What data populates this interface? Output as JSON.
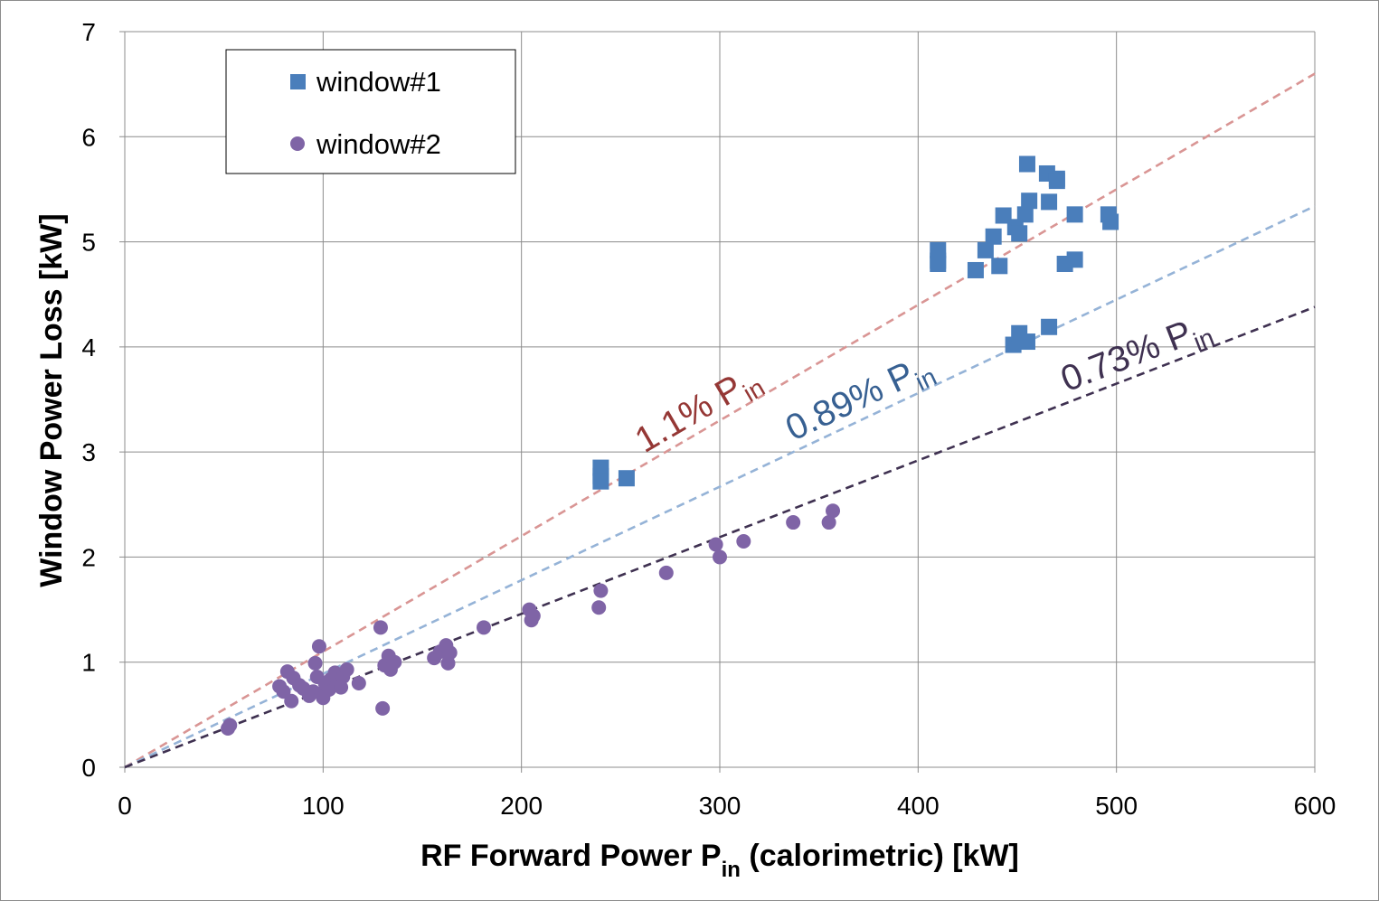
{
  "chart_data": {
    "type": "scatter",
    "xlabel": {
      "main": "RF Forward Power P",
      "sub": "in",
      "rest": " (calorimetric) [kW]"
    },
    "ylabel": "Window Power Loss [kW]",
    "xlim": [
      0,
      600
    ],
    "ylim": [
      0,
      7
    ],
    "x_ticks": [
      "0",
      "100",
      "200",
      "300",
      "400",
      "500",
      "600"
    ],
    "y_ticks": [
      "0",
      "1",
      "2",
      "3",
      "4",
      "5",
      "6",
      "7"
    ],
    "grid": true,
    "legend_position": "top-left",
    "series": [
      {
        "name": "window#1",
        "marker": "square",
        "color": "#4a7ebb",
        "points": [
          [
            240,
            2.85
          ],
          [
            240,
            2.77
          ],
          [
            240,
            2.72
          ],
          [
            253,
            2.75
          ],
          [
            410,
            4.92
          ],
          [
            410,
            4.82
          ],
          [
            410,
            4.79
          ],
          [
            429,
            4.73
          ],
          [
            434,
            4.92
          ],
          [
            438,
            5.05
          ],
          [
            441,
            4.77
          ],
          [
            443,
            5.25
          ],
          [
            448,
            4.02
          ],
          [
            449,
            5.14
          ],
          [
            451,
            5.08
          ],
          [
            451,
            4.13
          ],
          [
            455,
            4.05
          ],
          [
            454,
            5.26
          ],
          [
            455,
            5.74
          ],
          [
            456,
            5.39
          ],
          [
            465,
            5.65
          ],
          [
            466,
            5.38
          ],
          [
            466,
            4.19
          ],
          [
            470,
            5.6
          ],
          [
            470,
            5.58
          ],
          [
            474,
            4.79
          ],
          [
            479,
            5.26
          ],
          [
            479,
            4.83
          ],
          [
            496,
            5.26
          ],
          [
            497,
            5.19
          ]
        ]
      },
      {
        "name": "window#2",
        "marker": "circle",
        "color": "#7f64a6",
        "points": [
          [
            52,
            0.37
          ],
          [
            53,
            0.4
          ],
          [
            78,
            0.77
          ],
          [
            80,
            0.72
          ],
          [
            82,
            0.91
          ],
          [
            84,
            0.63
          ],
          [
            85,
            0.85
          ],
          [
            88,
            0.78
          ],
          [
            90,
            0.75
          ],
          [
            93,
            0.68
          ],
          [
            95,
            0.72
          ],
          [
            96,
            0.99
          ],
          [
            97,
            0.86
          ],
          [
            98,
            1.15
          ],
          [
            99,
            0.7
          ],
          [
            100,
            0.66
          ],
          [
            101,
            0.8
          ],
          [
            103,
            0.74
          ],
          [
            104,
            0.84
          ],
          [
            106,
            0.9
          ],
          [
            107,
            0.79
          ],
          [
            109,
            0.76
          ],
          [
            110,
            0.86
          ],
          [
            112,
            0.93
          ],
          [
            118,
            0.8
          ],
          [
            129,
            1.33
          ],
          [
            130,
            0.56
          ],
          [
            131,
            0.97
          ],
          [
            133,
            1.06
          ],
          [
            134,
            0.93
          ],
          [
            136,
            1.0
          ],
          [
            156,
            1.04
          ],
          [
            159,
            1.1
          ],
          [
            162,
            1.16
          ],
          [
            163,
            0.99
          ],
          [
            164,
            1.09
          ],
          [
            181,
            1.33
          ],
          [
            204,
            1.5
          ],
          [
            205,
            1.4
          ],
          [
            206,
            1.44
          ],
          [
            239,
            1.52
          ],
          [
            240,
            1.68
          ],
          [
            273,
            1.85
          ],
          [
            298,
            2.12
          ],
          [
            300,
            2.0
          ],
          [
            312,
            2.15
          ],
          [
            337,
            2.33
          ],
          [
            355,
            2.33
          ],
          [
            357,
            2.44
          ]
        ]
      }
    ],
    "reference_lines": [
      {
        "label": "1.1% P",
        "sub": "in",
        "slope": 0.011,
        "color": "#d99594",
        "text_color": "#953735"
      },
      {
        "label": "0.89% P",
        "sub": "in",
        "slope": 0.0089,
        "color": "#95b3d7",
        "text_color": "#376092"
      },
      {
        "label": "0.73% P",
        "sub": "in",
        "slope": 0.0073,
        "color": "#3f3151",
        "text_color": "#3f3151"
      }
    ]
  }
}
